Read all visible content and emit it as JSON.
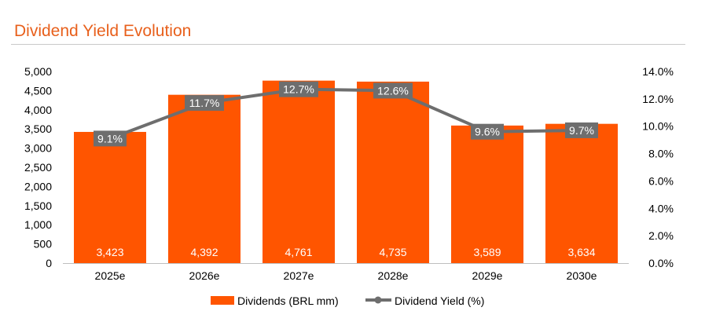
{
  "title": "Dividend Yield Evolution",
  "chart_data": {
    "type": "bar",
    "categories": [
      "2025e",
      "2026e",
      "2027e",
      "2028e",
      "2029e",
      "2030e"
    ],
    "series": [
      {
        "name": "Dividends (BRL mm)",
        "type": "bar",
        "axis": "left",
        "values": [
          3423,
          4392,
          4761,
          4735,
          3589,
          3634
        ],
        "labels": [
          "3,423",
          "4,392",
          "4,761",
          "4,735",
          "3,589",
          "3,634"
        ],
        "color": "#FF5500"
      },
      {
        "name": "Dividend Yield (%)",
        "type": "line",
        "axis": "right",
        "values": [
          9.1,
          11.7,
          12.7,
          12.6,
          9.6,
          9.7
        ],
        "labels": [
          "9.1%",
          "11.7%",
          "12.7%",
          "12.6%",
          "9.6%",
          "9.7%"
        ],
        "color": "#6E6E6E"
      }
    ],
    "ylim_left": [
      0,
      5000
    ],
    "yticks_left": [
      "0",
      "500",
      "1,000",
      "1,500",
      "2,000",
      "2,500",
      "3,000",
      "3,500",
      "4,000",
      "4,500",
      "5,000"
    ],
    "ylim_right": [
      0,
      14
    ],
    "yticks_right": [
      "0.0%",
      "2.0%",
      "4.0%",
      "6.0%",
      "8.0%",
      "10.0%",
      "12.0%",
      "14.0%"
    ],
    "grid": false,
    "legend": "bottom"
  }
}
